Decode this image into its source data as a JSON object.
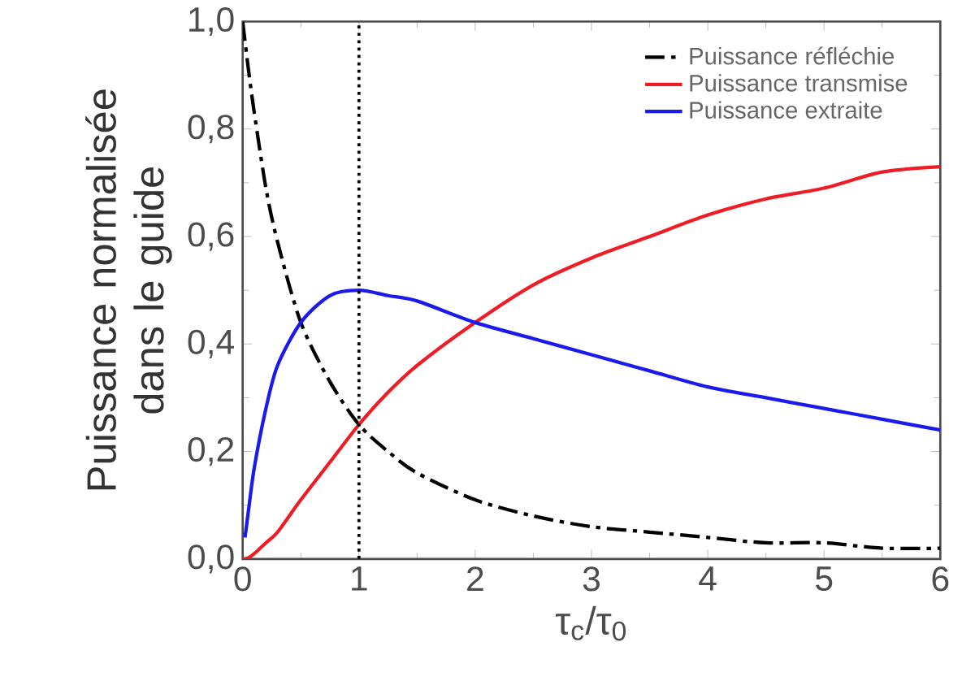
{
  "chart_data": {
    "type": "line",
    "xlabel": "τ$_{c}$/τ$_{0}$",
    "ylabel": "Puissance normalisée dans le guide",
    "xlim": [
      0,
      6
    ],
    "ylim": [
      0,
      1
    ],
    "xticks": [
      0,
      1,
      2,
      3,
      4,
      5,
      6
    ],
    "yticks": [
      {
        "value": 0,
        "label": "0,0"
      },
      {
        "value": 0.2,
        "label": "0,2"
      },
      {
        "value": 0.4,
        "label": "0,4"
      },
      {
        "value": 0.6,
        "label": "0,6"
      },
      {
        "value": 0.8,
        "label": "0,8"
      },
      {
        "value": 1,
        "label": "1,0"
      }
    ],
    "legend": "top right",
    "grid": false,
    "ref_lines": [
      {
        "axis": "x",
        "value": 1,
        "color": "#000000",
        "line_style": "dotted"
      }
    ],
    "series": [
      {
        "name": "Puissance réfléchie",
        "color": "#000000",
        "line_style": "dashdot",
        "x": [
          0,
          0.05,
          0.1,
          0.2,
          0.3,
          0.5,
          0.75,
          1,
          1.25,
          1.5,
          2,
          2.5,
          3,
          3.5,
          4,
          4.5,
          5,
          5.5,
          6
        ],
        "values": [
          1,
          0.91,
          0.83,
          0.69,
          0.59,
          0.44,
          0.33,
          0.25,
          0.2,
          0.16,
          0.11,
          0.08,
          0.06,
          0.05,
          0.04,
          0.03,
          0.03,
          0.02,
          0.02
        ]
      },
      {
        "name": "Puissance transmise",
        "color": "#ee1c25",
        "line_style": "solid",
        "x": [
          0,
          0.05,
          0.1,
          0.2,
          0.3,
          0.5,
          0.75,
          1,
          1.25,
          1.5,
          2,
          2.5,
          3,
          3.5,
          4,
          4.5,
          5,
          5.5,
          6
        ],
        "values": [
          0,
          0.002,
          0.01,
          0.03,
          0.05,
          0.11,
          0.18,
          0.25,
          0.31,
          0.36,
          0.44,
          0.51,
          0.56,
          0.6,
          0.64,
          0.67,
          0.69,
          0.72,
          0.73
        ]
      },
      {
        "name": "Puissance extraite",
        "color": "#1a1aee",
        "line_style": "solid",
        "x": [
          0.02,
          0.05,
          0.1,
          0.2,
          0.3,
          0.5,
          0.75,
          1,
          1.25,
          1.5,
          2,
          2.5,
          3,
          3.5,
          4,
          4.5,
          5,
          5.5,
          6
        ],
        "values": [
          0.04,
          0.09,
          0.17,
          0.28,
          0.36,
          0.44,
          0.49,
          0.5,
          0.49,
          0.48,
          0.44,
          0.41,
          0.38,
          0.35,
          0.32,
          0.3,
          0.28,
          0.26,
          0.24
        ]
      }
    ]
  }
}
